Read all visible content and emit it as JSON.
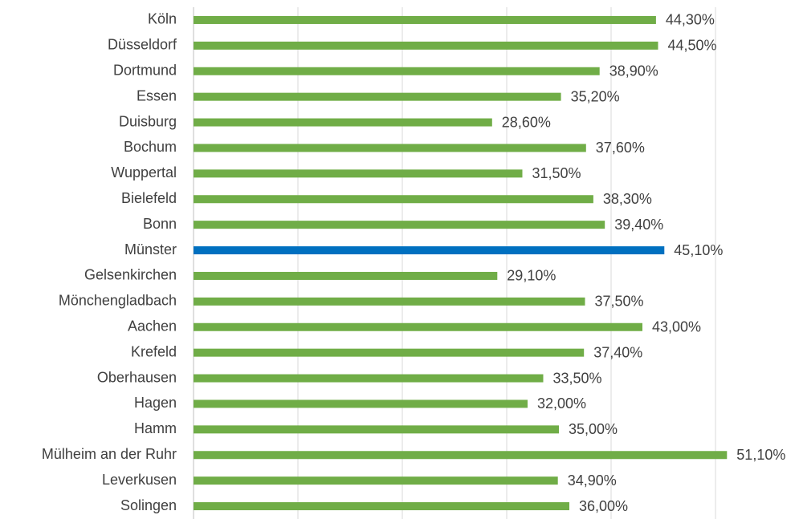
{
  "chart_data": {
    "type": "bar",
    "orientation": "horizontal",
    "categories": [
      "Köln",
      "Düsseldorf",
      "Dortmund",
      "Essen",
      "Duisburg",
      "Bochum",
      "Wuppertal",
      "Bielefeld",
      "Bonn",
      "Münster",
      "Gelsenkirchen",
      "Mönchengladbach",
      "Aachen",
      "Krefeld",
      "Oberhausen",
      "Hagen",
      "Hamm",
      "Mülheim an der Ruhr",
      "Leverkusen",
      "Solingen"
    ],
    "values": [
      44.3,
      44.5,
      38.9,
      35.2,
      28.6,
      37.6,
      31.5,
      38.3,
      39.4,
      45.1,
      29.1,
      37.5,
      43.0,
      37.4,
      33.5,
      32.0,
      35.0,
      51.1,
      34.9,
      36.0
    ],
    "value_labels": [
      "44,30%",
      "44,50%",
      "38,90%",
      "35,20%",
      "28,60%",
      "37,60%",
      "31,50%",
      "38,30%",
      "39,40%",
      "45,10%",
      "29,10%",
      "37,50%",
      "43,00%",
      "37,40%",
      "33,50%",
      "32,00%",
      "35,00%",
      "51,10%",
      "34,90%",
      "36,00%"
    ],
    "colors": [
      "#70ad47",
      "#70ad47",
      "#70ad47",
      "#70ad47",
      "#70ad47",
      "#70ad47",
      "#70ad47",
      "#70ad47",
      "#70ad47",
      "#0070c0",
      "#70ad47",
      "#70ad47",
      "#70ad47",
      "#70ad47",
      "#70ad47",
      "#70ad47",
      "#70ad47",
      "#70ad47",
      "#70ad47",
      "#70ad47"
    ],
    "xlim": [
      0,
      60
    ],
    "xticks": [
      0,
      10,
      20,
      30,
      40,
      50
    ],
    "grid": true
  }
}
